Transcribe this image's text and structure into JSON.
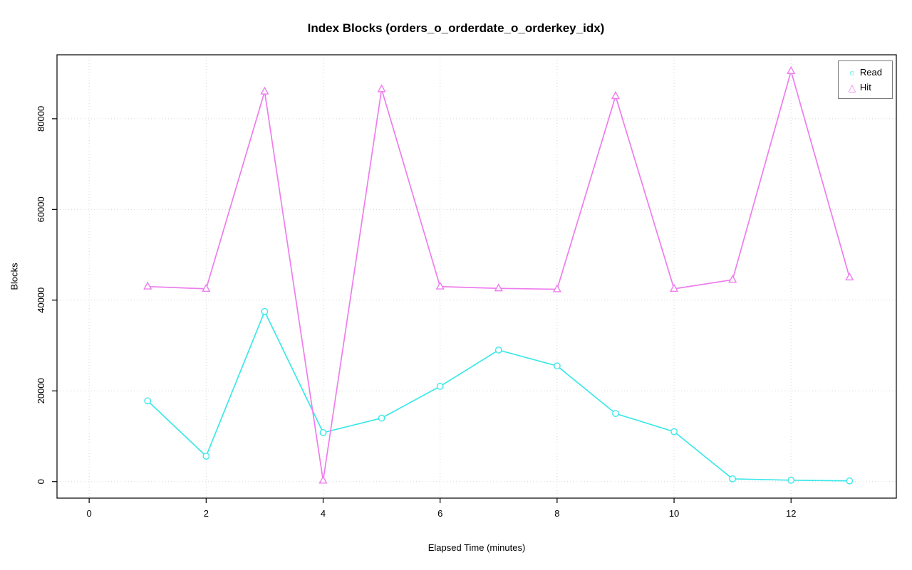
{
  "chart_data": {
    "type": "line",
    "title": "Index Blocks (orders_o_orderdate_o_orderkey_idx)",
    "xlabel": "Elapsed Time (minutes)",
    "ylabel": "Blocks",
    "x": [
      1,
      2,
      3,
      4,
      5,
      6,
      7,
      8,
      9,
      10,
      11,
      12,
      13
    ],
    "series": [
      {
        "name": "Read",
        "marker": "circle",
        "color": "#3de8e8",
        "values": [
          17800,
          5600,
          37500,
          10800,
          14000,
          21000,
          29000,
          25500,
          15000,
          11000,
          600,
          300,
          150
        ]
      },
      {
        "name": "Hit",
        "marker": "triangle",
        "color": "#ee7dee",
        "values": [
          43000,
          42500,
          86000,
          200,
          86500,
          43000,
          42600,
          42400,
          85000,
          42500,
          44500,
          90500,
          45000
        ]
      }
    ],
    "xticks": [
      0,
      2,
      4,
      6,
      8,
      10,
      12
    ],
    "yticks": [
      0,
      20000,
      40000,
      60000,
      80000
    ],
    "xlim": [
      -0.55,
      13.8
    ],
    "ylim": [
      -3650,
      94100
    ],
    "grid": true,
    "legend_position": "top-right",
    "grid_color": "#d8d8d8",
    "axis_color": "#000000"
  }
}
